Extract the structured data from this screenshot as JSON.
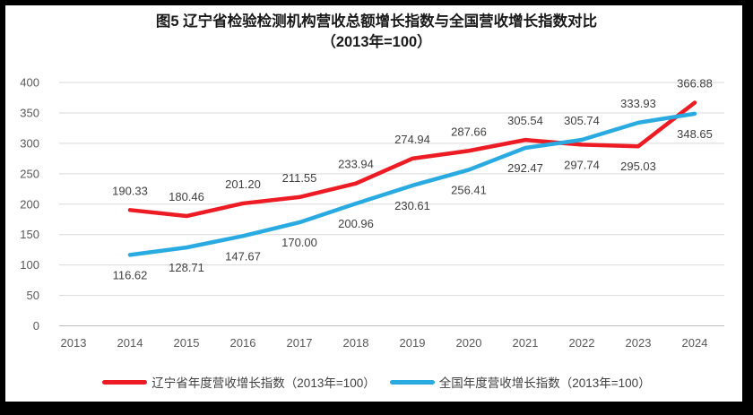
{
  "title": {
    "line1": "图5  辽宁省检验检测机构营收总额增长指数与全国营收增长指数对比",
    "line2": "（2013年=100）"
  },
  "chart_data": {
    "type": "line",
    "categories": [
      "2013",
      "2014",
      "2015",
      "2016",
      "2017",
      "2018",
      "2019",
      "2020",
      "2021",
      "2022",
      "2023",
      "2024"
    ],
    "series": [
      {
        "name": "辽宁省年度营收增长指数（2013年=100）",
        "color": "#ED1C24",
        "x_start": "2014",
        "values": [
          190.33,
          180.46,
          201.2,
          211.55,
          233.94,
          274.94,
          287.66,
          305.54,
          297.74,
          295.03,
          366.88
        ],
        "label_side": "above",
        "label_side_flipped_years": [
          "2022",
          "2023"
        ]
      },
      {
        "name": "全国年度营收增长指数（2013年=100）",
        "color": "#29ABE2",
        "x_start": "2014",
        "values": [
          116.62,
          128.71,
          147.67,
          170.0,
          200.96,
          230.61,
          256.41,
          292.47,
          305.74,
          333.93,
          348.65
        ],
        "label_side": "below",
        "label_side_flipped_years": [
          "2022",
          "2023"
        ]
      }
    ],
    "ylim": [
      0,
      400
    ],
    "y_tick_step": 50,
    "grid": true,
    "data_labels": true,
    "label_decimals": 2,
    "legend_position": "bottom",
    "colors": {
      "gridline": "#D9D9D9",
      "axis_line": "#BFBFBF",
      "tick_label": "#595959",
      "data_label": "#404040",
      "title": "#1A1A1A"
    }
  }
}
